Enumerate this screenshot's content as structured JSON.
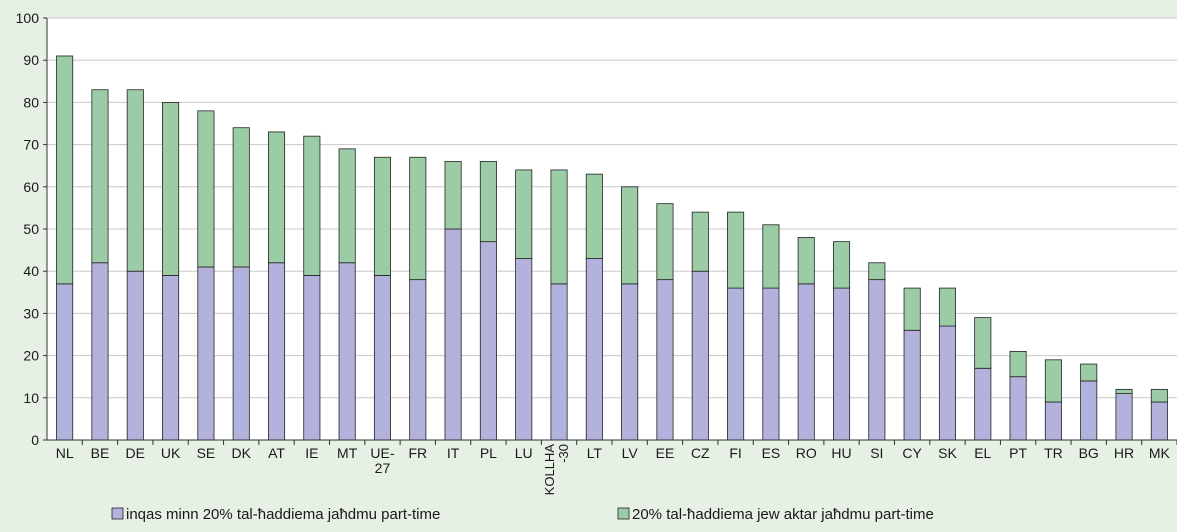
{
  "chart_data": {
    "type": "bar",
    "stacked": true,
    "categories": [
      "NL",
      "BE",
      "DE",
      "UK",
      "SE",
      "DK",
      "AT",
      "IE",
      "MT",
      "UE-27",
      "FR",
      "IT",
      "PL",
      "LU",
      "KOLLHA-30",
      "LT",
      "LV",
      "EE",
      "CZ",
      "FI",
      "ES",
      "RO",
      "HU",
      "SI",
      "CY",
      "SK",
      "EL",
      "PT",
      "TR",
      "BG",
      "HR",
      "MK"
    ],
    "category_labels": [
      [
        "NL"
      ],
      [
        "BE"
      ],
      [
        "DE"
      ],
      [
        "UK"
      ],
      [
        "SE"
      ],
      [
        "DK"
      ],
      [
        "AT"
      ],
      [
        "IE"
      ],
      [
        "MT"
      ],
      [
        "UE-",
        "27"
      ],
      [
        "FR"
      ],
      [
        "IT"
      ],
      [
        "PL"
      ],
      [
        "LU"
      ],
      [
        "KOLLHA",
        "-30"
      ],
      [
        "LT"
      ],
      [
        "LV"
      ],
      [
        "EE"
      ],
      [
        "CZ"
      ],
      [
        "FI"
      ],
      [
        "ES"
      ],
      [
        "RO"
      ],
      [
        "HU"
      ],
      [
        "SI"
      ],
      [
        "CY"
      ],
      [
        "SK"
      ],
      [
        "EL"
      ],
      [
        "PT"
      ],
      [
        "TR"
      ],
      [
        "BG"
      ],
      [
        "HR"
      ],
      [
        "MK"
      ]
    ],
    "series": [
      {
        "name": "inqas minn 20% tal-ħaddiema jaħdmu part-time",
        "color": "#b2b2dc",
        "values": [
          37,
          42,
          40,
          39,
          41,
          41,
          42,
          39,
          42,
          39,
          38,
          50,
          47,
          43,
          37,
          43,
          37,
          38,
          40,
          36,
          36,
          37,
          36,
          38,
          26,
          27,
          17,
          15,
          9,
          14,
          11,
          9
        ]
      },
      {
        "name": "20% tal-ħaddiema jew aktar jaħdmu part-time",
        "color": "#9ccca6",
        "values": [
          54,
          41,
          43,
          41,
          37,
          33,
          31,
          33,
          27,
          28,
          29,
          16,
          19,
          21,
          27,
          20,
          23,
          18,
          14,
          18,
          15,
          11,
          11,
          4,
          10,
          9,
          12,
          6,
          10,
          4,
          1,
          3
        ]
      }
    ],
    "y_ticks": [
      "0",
      "10",
      "20",
      "30",
      "40",
      "50",
      "60",
      "70",
      "80",
      "90",
      "100"
    ],
    "ylim": [
      0,
      100
    ],
    "grid": true,
    "legend_position": "bottom",
    "plot_background": "#ffffff",
    "page_background": "#e6f0e4",
    "gridline_color": "#c8c8c8"
  }
}
